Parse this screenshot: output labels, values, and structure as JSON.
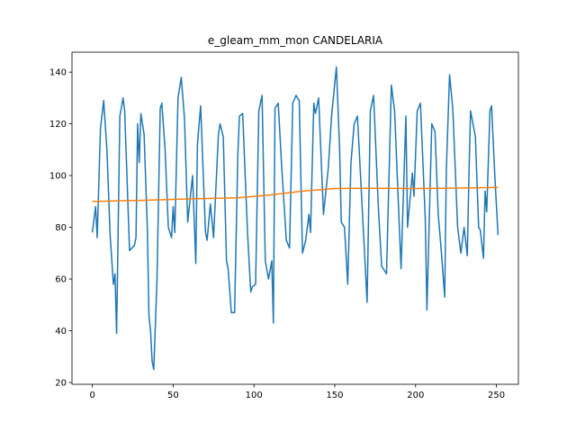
{
  "chart_data": {
    "type": "line",
    "title": "e_gleam_mm_mon CANDELARIA",
    "series": [
      {
        "color": "#1f77b4",
        "x": [
          0,
          2,
          3,
          5,
          7,
          9,
          11,
          13,
          14,
          15,
          17,
          19,
          20,
          23,
          26,
          27,
          28,
          29,
          30,
          32,
          34,
          35,
          36,
          37,
          38,
          40,
          42,
          43,
          45,
          47,
          49,
          50,
          51,
          53,
          55,
          57,
          59,
          62,
          64,
          65,
          67,
          70,
          71,
          73,
          75,
          78,
          79,
          81,
          83,
          84,
          86,
          88,
          90,
          91,
          93,
          96,
          98,
          99,
          101,
          103,
          105,
          107,
          109,
          111,
          112,
          113,
          115,
          117,
          120,
          122,
          124,
          126,
          128,
          130,
          132,
          134,
          135,
          137,
          138,
          140,
          143,
          146,
          148,
          151,
          153,
          154,
          156,
          158,
          160,
          162,
          164,
          168,
          170,
          172,
          174,
          177,
          179,
          182,
          185,
          187,
          191,
          194,
          195,
          198,
          199,
          201,
          203,
          206,
          207,
          210,
          212,
          214,
          216,
          218,
          219,
          221,
          223,
          226,
          228,
          230,
          232,
          233,
          234,
          237,
          239,
          240,
          242,
          243,
          244,
          246,
          247,
          249,
          251
        ],
        "values": [
          78,
          88,
          76,
          118,
          129,
          110,
          77,
          58,
          62,
          39,
          123,
          130,
          125,
          71,
          73,
          76,
          120,
          105,
          124,
          116,
          80,
          46,
          40,
          28,
          25,
          60,
          126,
          128,
          110,
          80,
          76,
          88,
          78,
          130,
          138,
          122,
          82,
          100,
          66,
          112,
          127,
          78,
          75,
          89,
          76,
          116,
          120,
          115,
          67,
          64,
          47,
          47,
          108,
          123,
          124,
          78,
          55,
          57,
          58,
          125,
          131,
          67,
          60,
          67,
          43,
          126,
          128,
          105,
          75,
          72,
          128,
          131,
          129,
          70,
          75,
          85,
          78,
          128,
          124,
          130,
          85,
          103,
          123,
          142,
          110,
          82,
          80,
          58,
          105,
          120,
          123,
          75,
          51,
          125,
          131,
          87,
          65,
          62,
          135,
          125,
          64,
          123,
          80,
          101,
          92,
          125,
          128,
          83,
          48,
          120,
          117,
          85,
          70,
          53,
          102,
          139,
          126,
          80,
          70,
          80,
          69,
          100,
          125,
          115,
          80,
          79,
          68,
          94,
          86,
          125,
          127,
          100,
          77
        ]
      },
      {
        "color": "#ff7f0e",
        "x": [
          0,
          30,
          60,
          90,
          110,
          130,
          150,
          170,
          200,
          230,
          251
        ],
        "values": [
          90,
          90.4,
          91,
          91.4,
          92.5,
          94,
          95,
          95.1,
          95,
          95.2,
          95.4
        ]
      }
    ],
    "xlim": [
      -12.6,
      263.6
    ],
    "xticks": [
      0,
      50,
      100,
      150,
      200,
      250
    ],
    "ylim": [
      19.3,
      147.7
    ],
    "yticks": [
      20,
      40,
      60,
      80,
      100,
      120,
      140
    ]
  }
}
